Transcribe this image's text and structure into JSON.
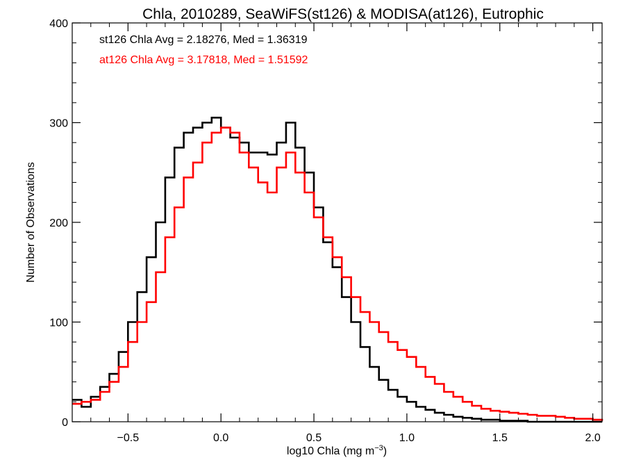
{
  "chart_data": {
    "type": "line",
    "title": "Chla, 2010289, SeaWiFS(st126) & MODISA(at126), Eutrophic",
    "xlabel": "log10 Chla (mg m",
    "xlabel_sup": "−3",
    "xlabel_end": ")",
    "ylabel": "Number of Observations",
    "xlim": [
      -0.8,
      2.05
    ],
    "ylim": [
      0,
      400
    ],
    "xticks": [
      -0.5,
      0.0,
      0.5,
      1.0,
      1.5,
      2.0
    ],
    "xtick_labels": [
      "−0.5",
      "0.0",
      "0.5",
      "1.0",
      "1.5",
      "2.0"
    ],
    "yticks": [
      0,
      100,
      200,
      300,
      400
    ],
    "ytick_labels": [
      "0",
      "100",
      "200",
      "300",
      "400"
    ],
    "grid": false,
    "annotations": [
      {
        "text": "st126 Chla Avg = 2.18276, Med = 1.36319",
        "color": "#000000"
      },
      {
        "text": "at126 Chla Avg = 3.17818, Med = 1.51592",
        "color": "#ff0000"
      }
    ],
    "series": [
      {
        "color": "#000000",
        "x": [
          -0.8,
          -0.75,
          -0.7,
          -0.65,
          -0.6,
          -0.55,
          -0.5,
          -0.45,
          -0.4,
          -0.35,
          -0.3,
          -0.25,
          -0.2,
          -0.15,
          -0.1,
          -0.05,
          0.0,
          0.05,
          0.1,
          0.15,
          0.2,
          0.25,
          0.3,
          0.35,
          0.4,
          0.45,
          0.5,
          0.55,
          0.6,
          0.65,
          0.7,
          0.75,
          0.8,
          0.85,
          0.9,
          0.95,
          1.0,
          1.05,
          1.1,
          1.15,
          1.2,
          1.25,
          1.3,
          1.35,
          1.4,
          1.45,
          1.5,
          1.55,
          1.6,
          1.65,
          1.7,
          1.75,
          1.8,
          1.85,
          1.9,
          1.95,
          2.0,
          2.05
        ],
        "values": [
          22,
          15,
          25,
          35,
          48,
          70,
          100,
          130,
          165,
          200,
          245,
          275,
          290,
          295,
          300,
          305,
          295,
          285,
          280,
          270,
          270,
          268,
          280,
          300,
          275,
          250,
          215,
          180,
          155,
          125,
          100,
          75,
          55,
          42,
          32,
          25,
          20,
          15,
          12,
          9,
          7,
          5,
          4,
          3,
          2,
          2,
          1,
          1,
          1,
          0,
          0,
          0,
          0,
          0,
          0,
          0,
          0,
          0
        ]
      },
      {
        "color": "#ff0000",
        "x": [
          -0.8,
          -0.75,
          -0.7,
          -0.65,
          -0.6,
          -0.55,
          -0.5,
          -0.45,
          -0.4,
          -0.35,
          -0.3,
          -0.25,
          -0.2,
          -0.15,
          -0.1,
          -0.05,
          0.0,
          0.05,
          0.1,
          0.15,
          0.2,
          0.25,
          0.3,
          0.35,
          0.4,
          0.45,
          0.5,
          0.55,
          0.6,
          0.65,
          0.7,
          0.75,
          0.8,
          0.85,
          0.9,
          0.95,
          1.0,
          1.05,
          1.1,
          1.15,
          1.2,
          1.25,
          1.3,
          1.35,
          1.4,
          1.45,
          1.5,
          1.55,
          1.6,
          1.65,
          1.7,
          1.75,
          1.8,
          1.85,
          1.9,
          1.95,
          2.0,
          2.05
        ],
        "values": [
          18,
          20,
          22,
          30,
          40,
          55,
          80,
          100,
          120,
          150,
          185,
          215,
          245,
          260,
          280,
          290,
          295,
          290,
          270,
          255,
          240,
          230,
          255,
          270,
          250,
          230,
          205,
          185,
          165,
          145,
          125,
          110,
          100,
          90,
          80,
          72,
          65,
          55,
          45,
          38,
          30,
          25,
          20,
          16,
          13,
          11,
          10,
          9,
          8,
          7,
          6,
          6,
          5,
          4,
          3,
          3,
          2,
          1
        ]
      }
    ]
  }
}
